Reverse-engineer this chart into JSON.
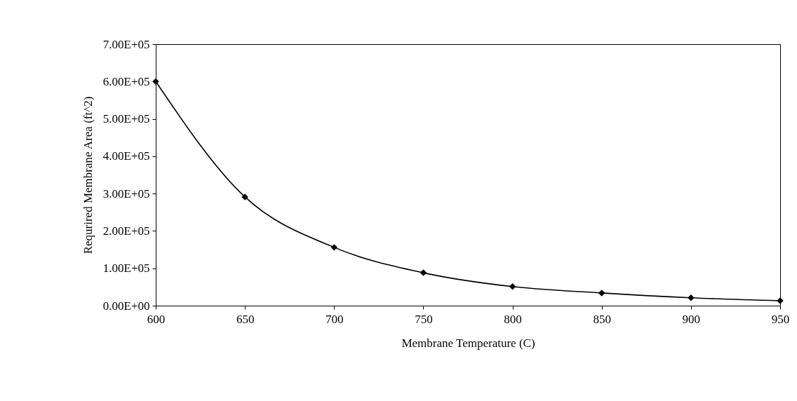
{
  "chart_data": {
    "type": "line",
    "xlabel": "Membrane Temperature (C)",
    "ylabel": "Requrired Membrane Area (ft^2)",
    "x": [
      600,
      650,
      700,
      750,
      800,
      850,
      900,
      950
    ],
    "series": [
      {
        "color": "#000000",
        "values": [
          600000,
          291000,
          156000,
          88000,
          51000,
          34000,
          21000,
          13000
        ]
      }
    ],
    "xlim": [
      600,
      950
    ],
    "xticks": [
      600,
      650,
      700,
      750,
      800,
      850,
      900,
      950
    ],
    "ylim": [
      0,
      700000
    ],
    "yticks": [
      {
        "value": 0,
        "label": "0.00E+00"
      },
      {
        "value": 100000,
        "label": "1.00E+05"
      },
      {
        "value": 200000,
        "label": "2.00E+05"
      },
      {
        "value": 300000,
        "label": "3.00E+05"
      },
      {
        "value": 400000,
        "label": "4.00E+05"
      },
      {
        "value": 500000,
        "label": "5.00E+05"
      },
      {
        "value": 600000,
        "label": "6.00E+05"
      },
      {
        "value": 700000,
        "label": "7.00E+05"
      }
    ],
    "marker": "diamond",
    "line_style": "solid"
  }
}
